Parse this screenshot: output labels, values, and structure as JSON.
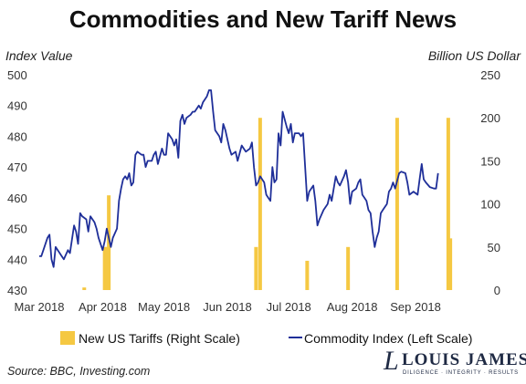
{
  "chart_data": {
    "type": "bar+line",
    "title": "Commodities and New Tariff News",
    "ylabel_left": "Index Value",
    "ylabel_right": "Billion US Dollar",
    "ylim_left": [
      430,
      500
    ],
    "yticks_left": [
      "430",
      "440",
      "450",
      "460",
      "470",
      "480",
      "490",
      "500"
    ],
    "ylim_right": [
      0,
      250
    ],
    "yticks_right": [
      "0",
      "50",
      "100",
      "150",
      "200",
      "250"
    ],
    "xlim": [
      "2018-03-01",
      "2018-09-30"
    ],
    "xticks": [
      {
        "date": "2018-03-01",
        "label": "Mar 2018"
      },
      {
        "date": "2018-04-01",
        "label": "Apr 2018"
      },
      {
        "date": "2018-05-01",
        "label": "May 2018"
      },
      {
        "date": "2018-06-01",
        "label": "Jun 2018"
      },
      {
        "date": "2018-07-01",
        "label": "Jul 2018"
      },
      {
        "date": "2018-08-01",
        "label": "Aug 2018"
      },
      {
        "date": "2018-09-01",
        "label": "Sep 2018"
      }
    ],
    "grid": false,
    "legend_position": "bottom",
    "series": [
      {
        "name": "New US Tariffs (Right Scale)",
        "type": "bar",
        "color": "#f5c842",
        "points": [
          {
            "x": "2018-03-23",
            "y": 3
          },
          {
            "x": "2018-04-02",
            "y": 50
          },
          {
            "x": "2018-04-03",
            "y": 50
          },
          {
            "x": "2018-04-04",
            "y": 110
          },
          {
            "x": "2018-06-15",
            "y": 50
          },
          {
            "x": "2018-06-17",
            "y": 200
          },
          {
            "x": "2018-07-10",
            "y": 34
          },
          {
            "x": "2018-07-30",
            "y": 50
          },
          {
            "x": "2018-08-23",
            "y": 200
          },
          {
            "x": "2018-09-17",
            "y": 200
          },
          {
            "x": "2018-09-18",
            "y": 60
          }
        ]
      },
      {
        "name": "Commodity Index (Left Scale)",
        "type": "line",
        "color": "#1f2f99",
        "points": [
          {
            "x": "2018-03-01",
            "y": 441
          },
          {
            "x": "2018-03-02",
            "y": 441
          },
          {
            "x": "2018-03-03",
            "y": 443
          },
          {
            "x": "2018-03-05",
            "y": 447
          },
          {
            "x": "2018-03-06",
            "y": 448
          },
          {
            "x": "2018-03-07",
            "y": 440
          },
          {
            "x": "2018-03-08",
            "y": 437.5
          },
          {
            "x": "2018-03-09",
            "y": 444
          },
          {
            "x": "2018-03-11",
            "y": 442
          },
          {
            "x": "2018-03-12",
            "y": 441
          },
          {
            "x": "2018-03-13",
            "y": 440
          },
          {
            "x": "2018-03-15",
            "y": 443
          },
          {
            "x": "2018-03-16",
            "y": 442
          },
          {
            "x": "2018-03-18",
            "y": 451
          },
          {
            "x": "2018-03-19",
            "y": 449
          },
          {
            "x": "2018-03-20",
            "y": 445
          },
          {
            "x": "2018-03-21",
            "y": 455
          },
          {
            "x": "2018-03-22",
            "y": 454
          },
          {
            "x": "2018-03-24",
            "y": 453
          },
          {
            "x": "2018-03-25",
            "y": 449
          },
          {
            "x": "2018-03-26",
            "y": 454
          },
          {
            "x": "2018-03-28",
            "y": 452
          },
          {
            "x": "2018-03-29",
            "y": 450
          },
          {
            "x": "2018-03-30",
            "y": 447
          },
          {
            "x": "2018-04-01",
            "y": 443
          },
          {
            "x": "2018-04-02",
            "y": 446
          },
          {
            "x": "2018-04-03",
            "y": 450
          },
          {
            "x": "2018-04-05",
            "y": 444
          },
          {
            "x": "2018-04-06",
            "y": 447
          },
          {
            "x": "2018-04-08",
            "y": 450
          },
          {
            "x": "2018-04-09",
            "y": 459
          },
          {
            "x": "2018-04-10",
            "y": 463
          },
          {
            "x": "2018-04-11",
            "y": 466
          },
          {
            "x": "2018-04-12",
            "y": 467
          },
          {
            "x": "2018-04-13",
            "y": 466
          },
          {
            "x": "2018-04-14",
            "y": 468
          },
          {
            "x": "2018-04-15",
            "y": 464
          },
          {
            "x": "2018-04-16",
            "y": 465
          },
          {
            "x": "2018-04-17",
            "y": 474
          },
          {
            "x": "2018-04-18",
            "y": 475
          },
          {
            "x": "2018-04-20",
            "y": 474
          },
          {
            "x": "2018-04-21",
            "y": 474
          },
          {
            "x": "2018-04-22",
            "y": 470
          },
          {
            "x": "2018-04-23",
            "y": 472
          },
          {
            "x": "2018-04-25",
            "y": 472
          },
          {
            "x": "2018-04-26",
            "y": 474
          },
          {
            "x": "2018-04-27",
            "y": 475
          },
          {
            "x": "2018-04-28",
            "y": 471
          },
          {
            "x": "2018-04-30",
            "y": 476
          },
          {
            "x": "2018-05-01",
            "y": 474
          },
          {
            "x": "2018-05-02",
            "y": 474
          },
          {
            "x": "2018-05-03",
            "y": 481
          },
          {
            "x": "2018-05-04",
            "y": 480
          },
          {
            "x": "2018-05-05",
            "y": 479
          },
          {
            "x": "2018-05-06",
            "y": 477
          },
          {
            "x": "2018-05-07",
            "y": 479
          },
          {
            "x": "2018-05-08",
            "y": 473
          },
          {
            "x": "2018-05-09",
            "y": 485
          },
          {
            "x": "2018-05-10",
            "y": 487
          },
          {
            "x": "2018-05-11",
            "y": 484
          },
          {
            "x": "2018-05-12",
            "y": 486
          },
          {
            "x": "2018-05-14",
            "y": 487
          },
          {
            "x": "2018-05-15",
            "y": 488
          },
          {
            "x": "2018-05-16",
            "y": 488
          },
          {
            "x": "2018-05-18",
            "y": 490
          },
          {
            "x": "2018-05-19",
            "y": 489
          },
          {
            "x": "2018-05-20",
            "y": 491
          },
          {
            "x": "2018-05-22",
            "y": 493
          },
          {
            "x": "2018-05-23",
            "y": 495
          },
          {
            "x": "2018-05-24",
            "y": 495
          },
          {
            "x": "2018-05-25",
            "y": 488
          },
          {
            "x": "2018-05-26",
            "y": 482
          },
          {
            "x": "2018-05-28",
            "y": 480
          },
          {
            "x": "2018-05-29",
            "y": 478
          },
          {
            "x": "2018-05-30",
            "y": 484
          },
          {
            "x": "2018-05-31",
            "y": 482
          },
          {
            "x": "2018-06-02",
            "y": 476
          },
          {
            "x": "2018-06-03",
            "y": 474
          },
          {
            "x": "2018-06-05",
            "y": 475
          },
          {
            "x": "2018-06-06",
            "y": 472
          },
          {
            "x": "2018-06-08",
            "y": 477
          },
          {
            "x": "2018-06-09",
            "y": 476
          },
          {
            "x": "2018-06-10",
            "y": 475
          },
          {
            "x": "2018-06-12",
            "y": 476
          },
          {
            "x": "2018-06-13",
            "y": 478
          },
          {
            "x": "2018-06-14",
            "y": 470
          },
          {
            "x": "2018-06-15",
            "y": 464
          },
          {
            "x": "2018-06-16",
            "y": 465
          },
          {
            "x": "2018-06-17",
            "y": 467
          },
          {
            "x": "2018-06-19",
            "y": 465
          },
          {
            "x": "2018-06-20",
            "y": 461
          },
          {
            "x": "2018-06-21",
            "y": 460
          },
          {
            "x": "2018-06-22",
            "y": 459
          },
          {
            "x": "2018-06-23",
            "y": 470
          },
          {
            "x": "2018-06-24",
            "y": 465
          },
          {
            "x": "2018-06-25",
            "y": 466
          },
          {
            "x": "2018-06-26",
            "y": 481
          },
          {
            "x": "2018-06-27",
            "y": 477
          },
          {
            "x": "2018-06-28",
            "y": 488
          },
          {
            "x": "2018-06-30",
            "y": 483
          },
          {
            "x": "2018-07-01",
            "y": 481
          },
          {
            "x": "2018-07-02",
            "y": 484
          },
          {
            "x": "2018-07-03",
            "y": 478
          },
          {
            "x": "2018-07-04",
            "y": 481
          },
          {
            "x": "2018-07-06",
            "y": 481
          },
          {
            "x": "2018-07-07",
            "y": 480
          },
          {
            "x": "2018-07-08",
            "y": 481
          },
          {
            "x": "2018-07-10",
            "y": 459
          },
          {
            "x": "2018-07-11",
            "y": 462
          },
          {
            "x": "2018-07-13",
            "y": 464
          },
          {
            "x": "2018-07-14",
            "y": 459
          },
          {
            "x": "2018-07-15",
            "y": 451
          },
          {
            "x": "2018-07-16",
            "y": 453
          },
          {
            "x": "2018-07-18",
            "y": 456
          },
          {
            "x": "2018-07-20",
            "y": 458
          },
          {
            "x": "2018-07-21",
            "y": 461
          },
          {
            "x": "2018-07-22",
            "y": 459
          },
          {
            "x": "2018-07-24",
            "y": 467
          },
          {
            "x": "2018-07-25",
            "y": 465
          },
          {
            "x": "2018-07-26",
            "y": 464
          },
          {
            "x": "2018-07-28",
            "y": 467
          },
          {
            "x": "2018-07-29",
            "y": 469
          },
          {
            "x": "2018-07-30",
            "y": 465
          },
          {
            "x": "2018-07-31",
            "y": 458
          },
          {
            "x": "2018-08-01",
            "y": 462
          },
          {
            "x": "2018-08-03",
            "y": 463
          },
          {
            "x": "2018-08-04",
            "y": 465
          },
          {
            "x": "2018-08-05",
            "y": 466
          },
          {
            "x": "2018-08-06",
            "y": 461
          },
          {
            "x": "2018-08-07",
            "y": 460
          },
          {
            "x": "2018-08-08",
            "y": 459
          },
          {
            "x": "2018-08-09",
            "y": 456
          },
          {
            "x": "2018-08-10",
            "y": 455
          },
          {
            "x": "2018-08-11",
            "y": 449
          },
          {
            "x": "2018-08-12",
            "y": 444
          },
          {
            "x": "2018-08-13",
            "y": 447
          },
          {
            "x": "2018-08-14",
            "y": 449
          },
          {
            "x": "2018-08-15",
            "y": 455
          },
          {
            "x": "2018-08-16",
            "y": 456
          },
          {
            "x": "2018-08-18",
            "y": 458
          },
          {
            "x": "2018-08-19",
            "y": 462
          },
          {
            "x": "2018-08-20",
            "y": 463
          },
          {
            "x": "2018-08-21",
            "y": 465
          },
          {
            "x": "2018-08-22",
            "y": 463
          },
          {
            "x": "2018-08-24",
            "y": 468
          },
          {
            "x": "2018-08-25",
            "y": 468.5
          },
          {
            "x": "2018-08-27",
            "y": 468
          },
          {
            "x": "2018-08-28",
            "y": 465
          },
          {
            "x": "2018-08-29",
            "y": 461
          },
          {
            "x": "2018-08-31",
            "y": 462
          },
          {
            "x": "2018-09-02",
            "y": 461
          },
          {
            "x": "2018-09-03",
            "y": 466
          },
          {
            "x": "2018-09-04",
            "y": 471
          },
          {
            "x": "2018-09-05",
            "y": 466
          },
          {
            "x": "2018-09-06",
            "y": 465
          },
          {
            "x": "2018-09-08",
            "y": 463.5
          },
          {
            "x": "2018-09-10",
            "y": 463
          },
          {
            "x": "2018-09-11",
            "y": 463
          },
          {
            "x": "2018-09-12",
            "y": 468
          }
        ]
      }
    ]
  },
  "legend": {
    "bars_label": "New US Tariffs (Right Scale)",
    "line_label": "Commodity Index (Left Scale)"
  },
  "footer": {
    "source": "Source: BBC, Investing.com",
    "logo_name": "LOUIS JAMES",
    "logo_tagline": "DILIGENCE · INTEGRITY · RESULTS"
  }
}
